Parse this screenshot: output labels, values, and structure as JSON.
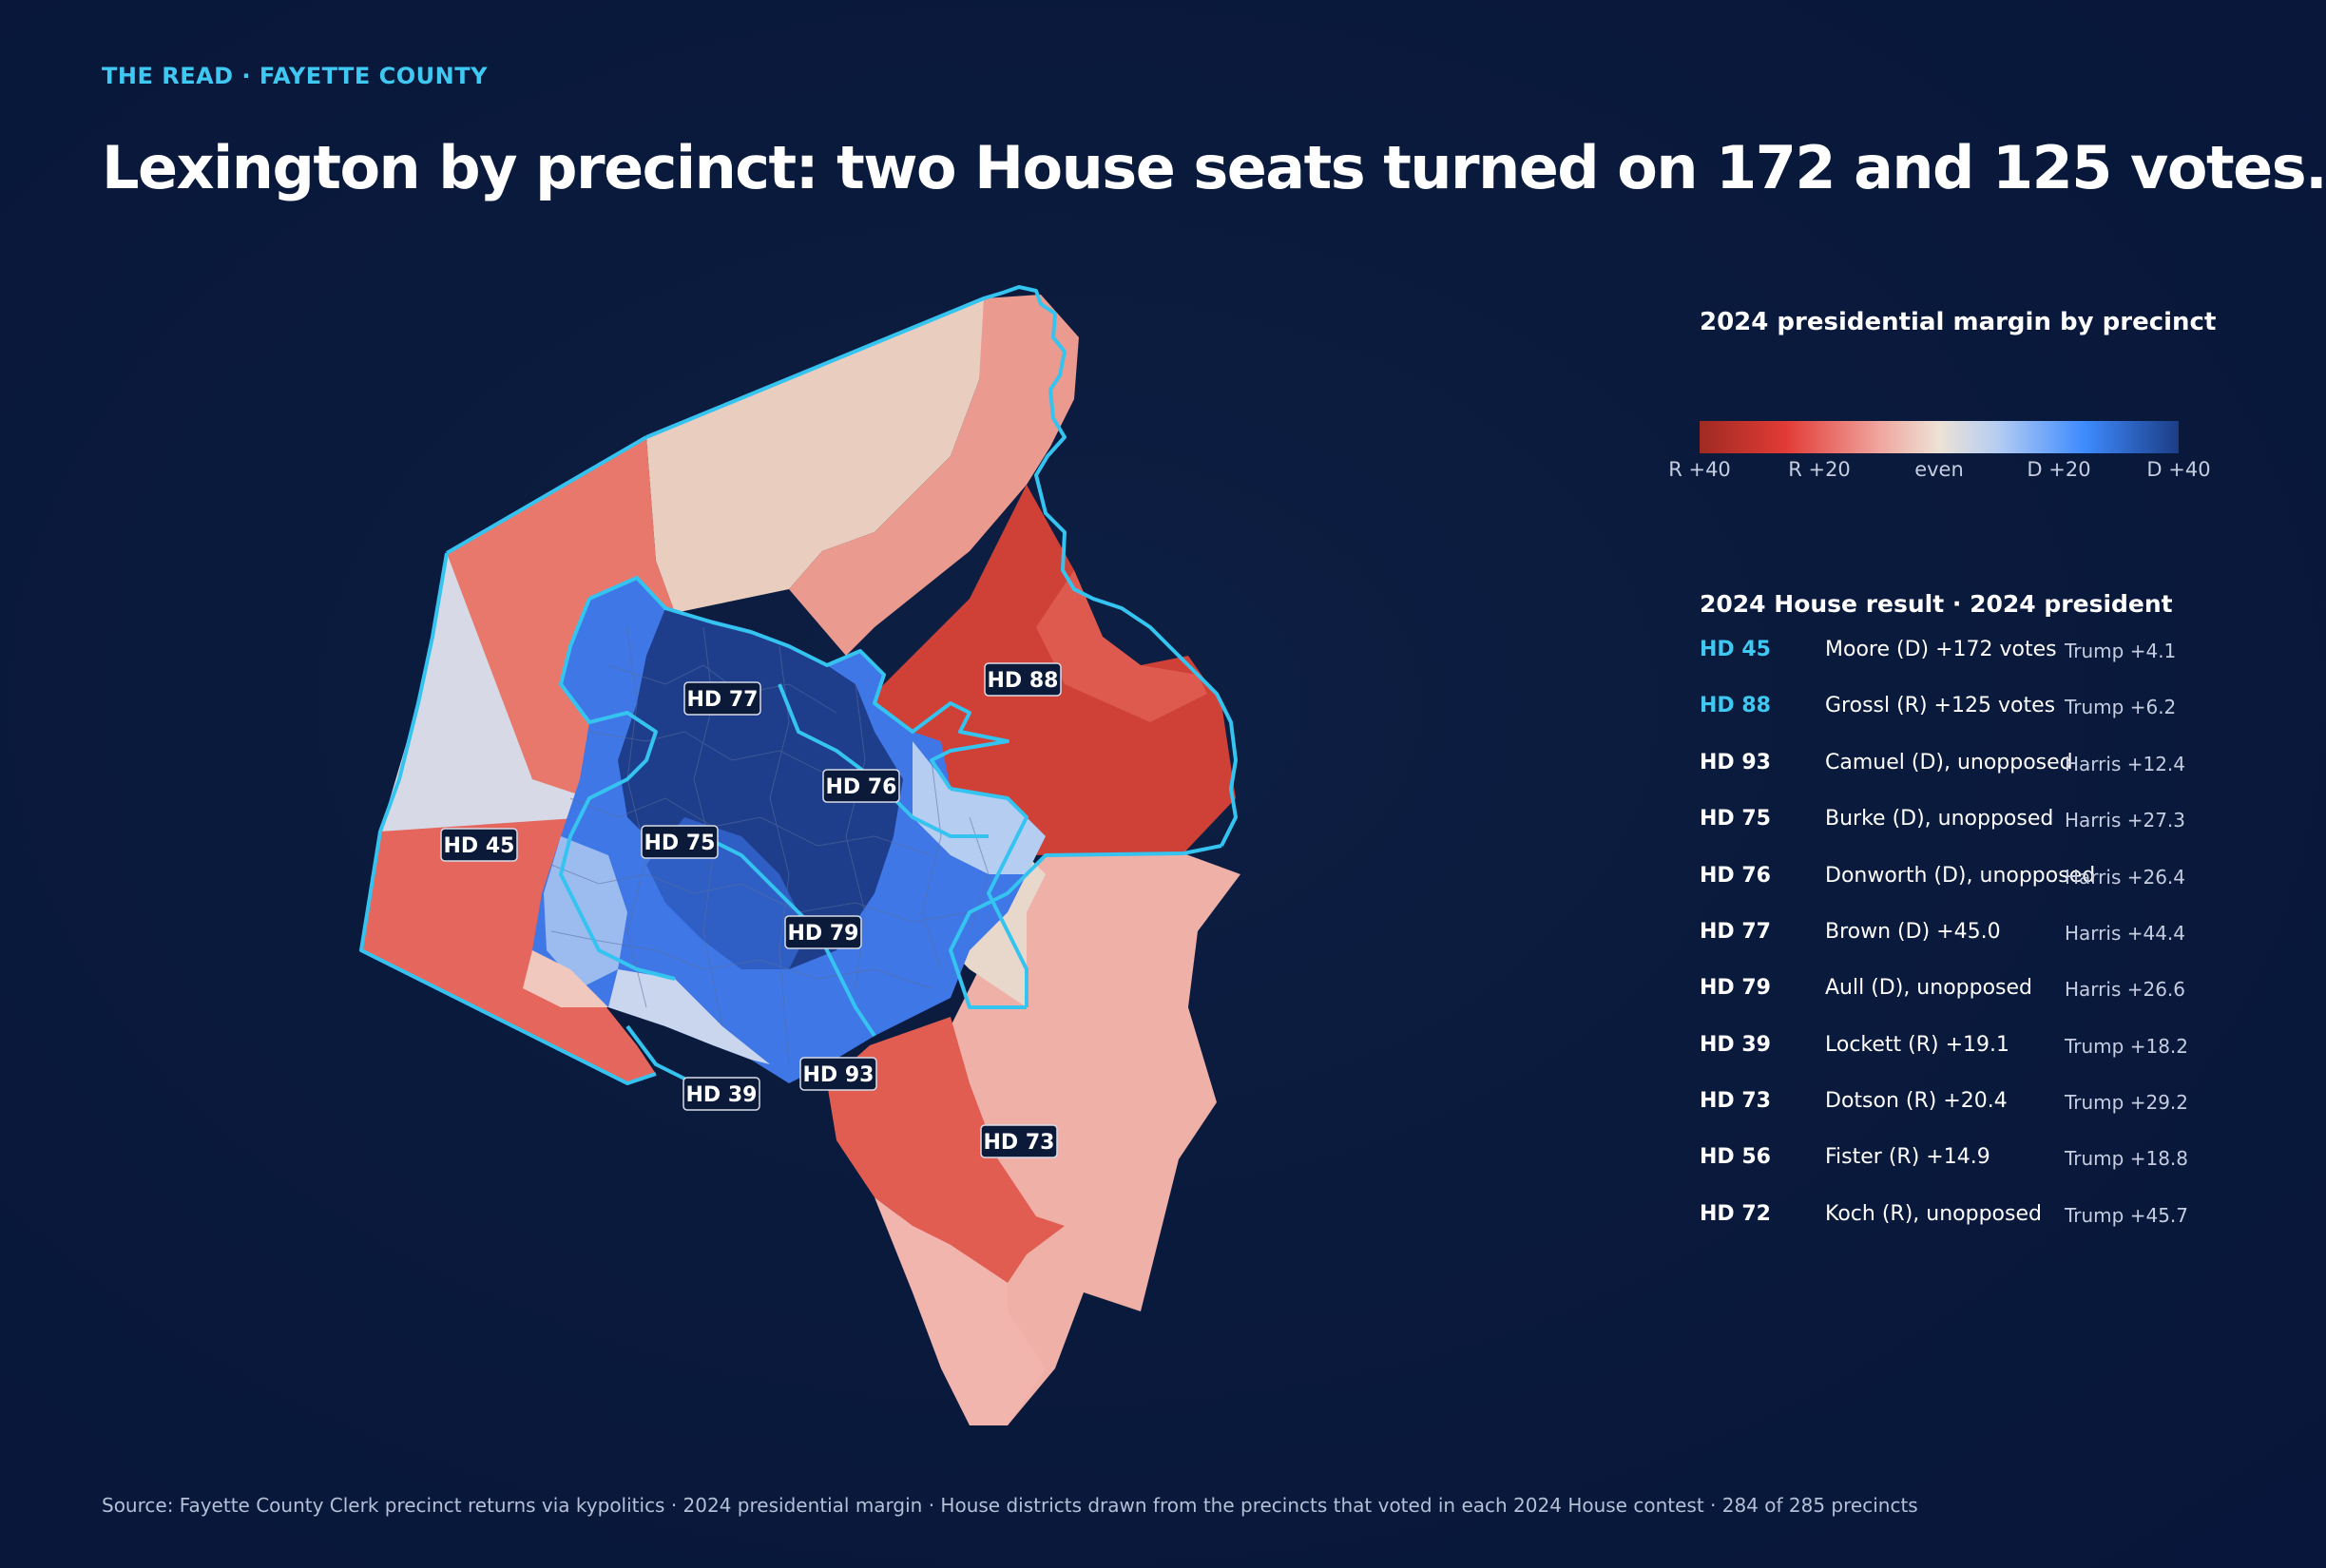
{
  "kicker": "THE READ · FAYETTE COUNTY",
  "headline": "Lexington by precinct: two House seats turned on 172 and 125 votes.",
  "legend": {
    "title": "2024 presidential margin by precinct",
    "ticks": [
      "R +40",
      "R +20",
      "even",
      "D +20",
      "D +40"
    ]
  },
  "table": {
    "header": "2024 House result · 2024 president",
    "rows": [
      {
        "district": "HD 45",
        "result": "Moore (D) +172 votes",
        "president": "Trump +4.1",
        "highlight": true
      },
      {
        "district": "HD 88",
        "result": "Grossl (R) +125 votes",
        "president": "Trump +6.2",
        "highlight": true
      },
      {
        "district": "HD 93",
        "result": "Camuel (D), unopposed",
        "president": "Harris +12.4",
        "highlight": false
      },
      {
        "district": "HD 75",
        "result": "Burke (D), unopposed",
        "president": "Harris +27.3",
        "highlight": false
      },
      {
        "district": "HD 76",
        "result": "Donworth (D), unopposed",
        "president": "Harris +26.4",
        "highlight": false
      },
      {
        "district": "HD 77",
        "result": "Brown (D) +45.0",
        "president": "Harris +44.4",
        "highlight": false
      },
      {
        "district": "HD 79",
        "result": "Aull (D), unopposed",
        "president": "Harris +26.6",
        "highlight": false
      },
      {
        "district": "HD 39",
        "result": "Lockett (R) +19.1",
        "president": "Trump +18.2",
        "highlight": false
      },
      {
        "district": "HD 73",
        "result": "Dotson (R) +20.4",
        "president": "Trump +29.2",
        "highlight": false
      },
      {
        "district": "HD 56",
        "result": "Fister (R) +14.9",
        "president": "Trump +18.8",
        "highlight": false
      },
      {
        "district": "HD 72",
        "result": "Koch (R), unopposed",
        "president": "Trump +45.7",
        "highlight": false
      }
    ]
  },
  "map": {
    "district_labels": [
      "HD 77",
      "HD 88",
      "HD 76",
      "HD 45",
      "HD 75",
      "HD 79",
      "HD 93",
      "HD 39",
      "HD 73"
    ],
    "colors": {
      "outline": "#35c3f0",
      "r_strong": "#cf3f37",
      "r_mid": "#e8786c",
      "r_light": "#eca49c",
      "even": "#e9cec0",
      "d_light": "#9cbcf0",
      "d_mid": "#3f77e6",
      "d_strong": "#1e3e8c"
    }
  },
  "source": "Source: Fayette County Clerk precinct returns via kypolitics · 2024 presidential margin · House districts drawn from the precincts that voted in each 2024 House contest · 284 of 285 precincts"
}
